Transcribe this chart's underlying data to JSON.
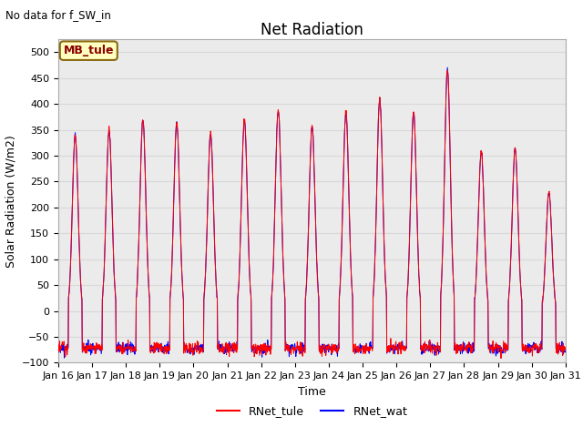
{
  "title": "Net Radiation",
  "subtitle": "No data for f_SW_in",
  "xlabel": "Time",
  "ylabel": "Solar Radiation (W/m2)",
  "ylim": [
    -100,
    525
  ],
  "yticks": [
    -100,
    -50,
    0,
    50,
    100,
    150,
    200,
    250,
    300,
    350,
    400,
    450,
    500
  ],
  "legend_labels": [
    "RNet_tule",
    "RNet_wat"
  ],
  "legend_colors": [
    "red",
    "blue"
  ],
  "annotation_text": "MB_tule",
  "annotation_color": "#8B0000",
  "annotation_bg": "#FFFFC0",
  "annotation_border": "#8B6914",
  "n_days": 15,
  "samples_per_day": 96,
  "night_value": -72,
  "peak_values_tule": [
    340,
    350,
    370,
    365,
    345,
    370,
    390,
    360,
    385,
    410,
    385,
    467,
    310,
    315,
    230
  ],
  "peak_values_wat": [
    338,
    348,
    368,
    363,
    343,
    368,
    388,
    358,
    383,
    410,
    383,
    465,
    308,
    313,
    228
  ],
  "bg_color": "#ebebeb",
  "plot_bg_color": "white",
  "grid_color": "#d8d8d8",
  "title_fontsize": 12,
  "label_fontsize": 9,
  "tick_fontsize": 8
}
